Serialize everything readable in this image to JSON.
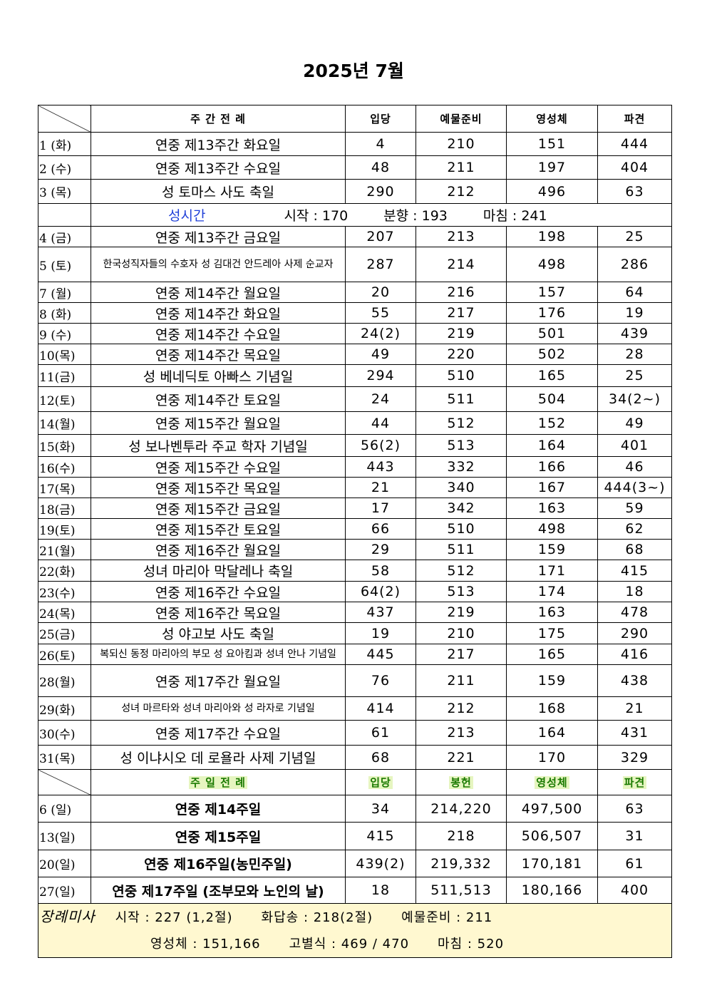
{
  "title": "2025년 7월",
  "weekday_header": [
    "주 간 전 례",
    "입당",
    "예물준비",
    "영성체",
    "파견"
  ],
  "weekday_rows": [
    [
      "1 (화)",
      "연중 제13주간 화요일",
      "4",
      "210",
      "151",
      "444"
    ],
    [
      "2 (수)",
      "연중 제13주간 수요일",
      "48",
      "211",
      "197",
      "404"
    ],
    [
      "3 (목)",
      "성 토마스 사도 축일",
      "290",
      "212",
      "496",
      "63"
    ],
    {
      "holy_hour": {
        "label": "성시간",
        "start": "시작 : 170",
        "incense": "분향 : 193",
        "end": "마침 : 241"
      }
    },
    [
      "4 (금)",
      "연중 제13주간 금요일",
      "207",
      "213",
      "198",
      "25"
    ],
    [
      "5 (토)",
      "한국성직자들의 수호자 성 김대건 안드레아 사제 순교자",
      "287",
      "214",
      "498",
      "286"
    ],
    [
      "7 (월)",
      "연중 제14주간 월요일",
      "20",
      "216",
      "157",
      "64"
    ],
    [
      "8 (화)",
      "연중 제14주간 화요일",
      "55",
      "217",
      "176",
      "19"
    ],
    [
      "9 (수)",
      "연중 제14주간 수요일",
      "24(2)",
      "219",
      "501",
      "439"
    ],
    [
      "10(목)",
      "연중 제14주간 목요일",
      "49",
      "220",
      "502",
      "28"
    ],
    [
      "11(금)",
      "성 베네딕토 아빠스 기념일",
      "294",
      "510",
      "165",
      "25"
    ],
    [
      "12(토)",
      "연중 제14주간 토요일",
      "24",
      "511",
      "504",
      "34(2~)"
    ],
    [
      "14(월)",
      "연중 제15주간 월요일",
      "44",
      "512",
      "152",
      "49"
    ],
    [
      "15(화)",
      "성 보나벤투라 주교 학자 기념일",
      "56(2)",
      "513",
      "164",
      "401"
    ],
    [
      "16(수)",
      "연중 제15주간 수요일",
      "443",
      "332",
      "166",
      "46"
    ],
    [
      "17(목)",
      "연중 제15주간 목요일",
      "21",
      "340",
      "167",
      "444(3~)"
    ],
    [
      "18(금)",
      "연중 제15주간 금요일",
      "17",
      "342",
      "163",
      "59"
    ],
    [
      "19(토)",
      "연중 제15주간 토요일",
      "66",
      "510",
      "498",
      "62"
    ],
    [
      "21(월)",
      "연중 제16주간 월요일",
      "29",
      "511",
      "159",
      "68"
    ],
    [
      "22(화)",
      "성녀 마리아 막달레나 축일",
      "58",
      "512",
      "171",
      "415"
    ],
    [
      "23(수)",
      "연중 제16주간 수요일",
      "64(2)",
      "513",
      "174",
      "18"
    ],
    [
      "24(목)",
      "연중 제16주간 목요일",
      "437",
      "219",
      "163",
      "478"
    ],
    [
      "25(금)",
      "성 야고보 사도 축일",
      "19",
      "210",
      "175",
      "290"
    ],
    [
      "26(토)",
      "복되신 동정 마리아의 부모 성 요아킴과 성녀 안나 기념일",
      "445",
      "217",
      "165",
      "416"
    ],
    [
      "28(월)",
      "연중 제17주간 월요일",
      "76",
      "211",
      "159",
      "438"
    ],
    [
      "29(화)",
      "성녀 마르타와 성녀 마리아와 성 라자로 기념일",
      "414",
      "212",
      "168",
      "21"
    ],
    [
      "30(수)",
      "연중 제17주간 수요일",
      "61",
      "213",
      "164",
      "431"
    ],
    [
      "31(목)",
      "성 이냐시오 데 로욜라 사제 기념일",
      "68",
      "221",
      "170",
      "329"
    ]
  ],
  "sunday_header": [
    "주 일 전 례",
    "입당",
    "봉헌",
    "영성체",
    "파견"
  ],
  "sunday_rows": [
    [
      "6 (일)",
      "연중 제14주일",
      "34",
      "214,220",
      "497,500",
      "63"
    ],
    [
      "13(일)",
      "연중 제15주일",
      "415",
      "218",
      "506,507",
      "31"
    ],
    [
      "20(일)",
      "연중 제16주일(농민주일)",
      "439(2)",
      "219,332",
      "170,181",
      "61"
    ],
    [
      "27(일)",
      "연중 제17주일 (조부모와 노인의 날)",
      "18",
      "511,513",
      "180,166",
      "400"
    ]
  ],
  "funeral": {
    "label": "장례미사",
    "start": "시작 : 227 (1,2절)",
    "response": "화답송 : 218(2절)",
    "offertory": "예물준비 : 211",
    "communion": "영성체 : 151,166",
    "farewell": "고별식 : 469 / 470",
    "end": "마침 : 520"
  },
  "colors": {
    "highlight_bg": "#e6f5c0",
    "highlight_text": "#1a7a00",
    "holy_hour": "#1f3fd8",
    "footer_bg": "#fff8d0"
  }
}
